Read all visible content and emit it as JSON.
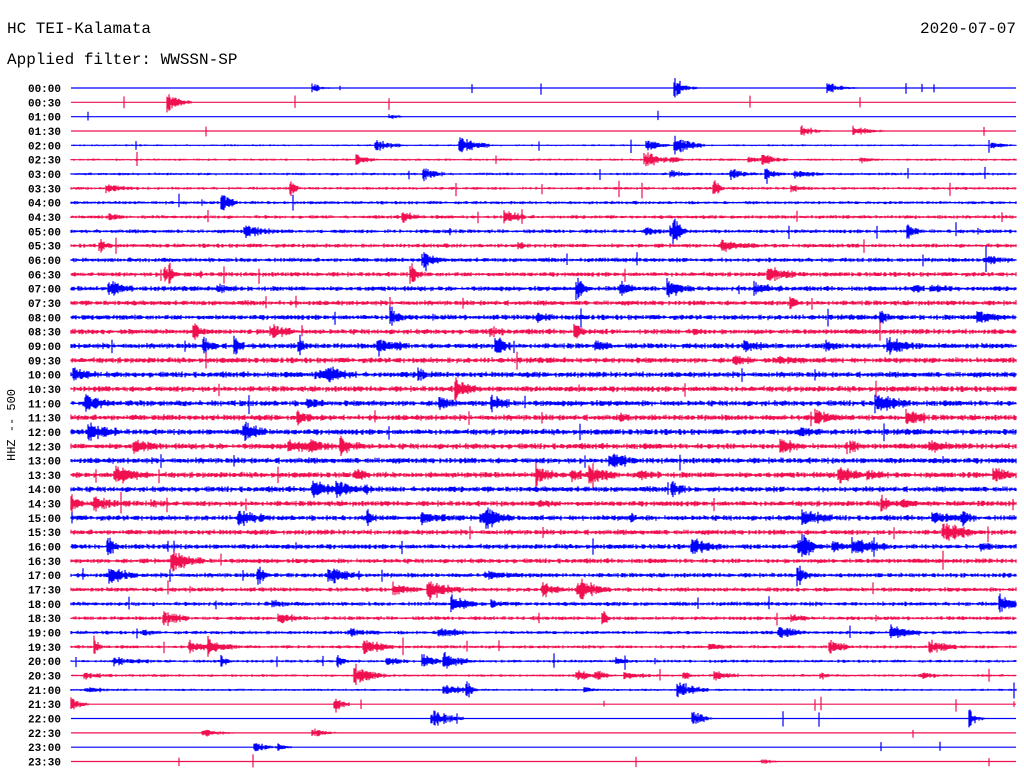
{
  "header": {
    "station": "HC TEI-Kalamata",
    "date": "2020-07-07",
    "filter": "Applied filter: WWSSN-SP"
  },
  "channel_label": "HHZ -- 500",
  "colors": {
    "even_row": "#0000ff",
    "odd_row": "#f01050",
    "text": "#000000"
  },
  "rows": [
    "00:00",
    "00:30",
    "01:00",
    "01:30",
    "02:00",
    "02:30",
    "03:00",
    "03:30",
    "04:00",
    "04:30",
    "05:00",
    "05:30",
    "06:00",
    "06:30",
    "07:00",
    "07:30",
    "08:00",
    "08:30",
    "09:00",
    "09:30",
    "10:00",
    "10:30",
    "11:00",
    "11:30",
    "12:00",
    "12:30",
    "13:00",
    "13:30",
    "14:00",
    "14:30",
    "15:00",
    "15:30",
    "16:00",
    "16:30",
    "17:00",
    "17:30",
    "18:00",
    "18:30",
    "19:00",
    "19:30",
    "20:00",
    "20:30",
    "21:00",
    "21:30",
    "22:00",
    "22:30",
    "23:00",
    "23:30"
  ]
}
